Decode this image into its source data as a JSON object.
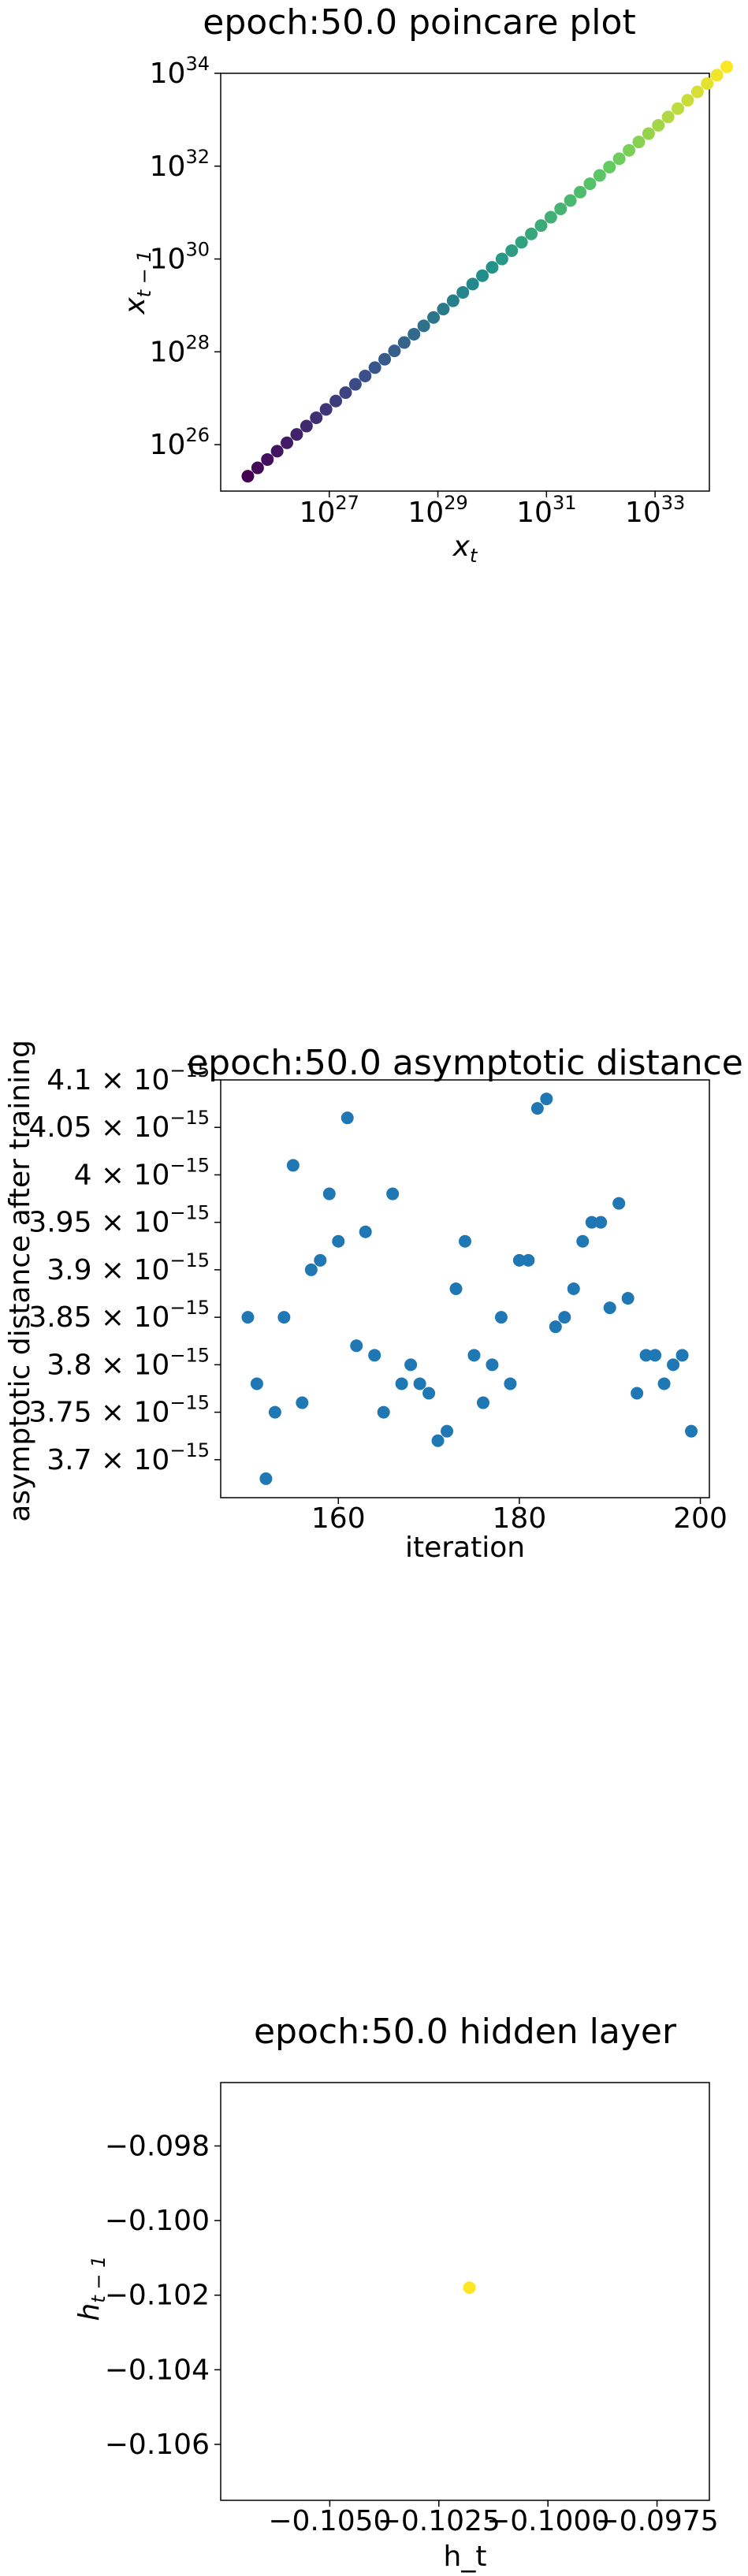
{
  "chart_data": [
    {
      "type": "scatter",
      "title": "epoch:50.0 poincare plot",
      "xlabel": "x",
      "xlabel_sub": "t",
      "ylabel": "x",
      "ylabel_sub": "t − 1",
      "xscale": "log",
      "yscale": "log",
      "xlim": [
        1e+25,
        1e+34
      ],
      "ylim": [
        1e+25,
        1e+34
      ],
      "colormap": "viridis",
      "xtick_mantissa": "10",
      "xtick_exponents": [
        "27",
        "29",
        "31",
        "33"
      ],
      "ytick_mantissa": "10",
      "ytick_exponents": [
        "26",
        "28",
        "30",
        "32",
        "34"
      ],
      "log_x_start": 25.5,
      "log_step": 0.18,
      "n_points": 50
    },
    {
      "type": "scatter",
      "title": "epoch:50.0 asymptotic distance",
      "xlabel": "iteration",
      "ylabel": "asymptotic distance after training",
      "xlim": [
        147,
        201
      ],
      "ylim": [
        3.66e-15,
        4.1e-15
      ],
      "color": "#1f77b4",
      "xticks": [
        "160",
        "180",
        "200"
      ],
      "ytick_mantissas": [
        "3.7",
        "3.75",
        "3.8",
        "3.85",
        "3.9",
        "3.95",
        "4",
        "4.05",
        "4.1"
      ],
      "ytick_times": "×",
      "ytick_power": "10",
      "ytick_exp": "−15",
      "x": [
        150,
        151,
        152,
        153,
        154,
        155,
        156,
        157,
        158,
        159,
        160,
        161,
        162,
        163,
        164,
        165,
        166,
        167,
        168,
        169,
        170,
        171,
        172,
        173,
        174,
        175,
        176,
        177,
        178,
        179,
        180,
        181,
        182,
        183,
        184,
        185,
        186,
        187,
        188,
        189,
        190,
        191,
        192,
        193,
        194,
        195,
        196,
        197,
        198,
        199
      ],
      "y": [
        3.85,
        3.78,
        3.68,
        3.75,
        3.85,
        4.01,
        3.76,
        3.9,
        3.91,
        3.98,
        3.93,
        4.06,
        3.82,
        3.94,
        3.81,
        3.75,
        3.98,
        3.78,
        3.8,
        3.78,
        3.77,
        3.72,
        3.73,
        3.88,
        3.93,
        3.81,
        3.76,
        3.8,
        3.85,
        3.78,
        3.91,
        3.91,
        4.07,
        4.08,
        3.84,
        3.85,
        3.88,
        3.93,
        3.95,
        3.95,
        3.86,
        3.97,
        3.87,
        3.77,
        3.81,
        3.81,
        3.78,
        3.8,
        3.81,
        3.73
      ],
      "y_unit_exp": -15
    },
    {
      "type": "scatter",
      "title": "epoch:50.0 hidden layer",
      "xlabel": "h_t",
      "ylabel": "h",
      "ylabel_sub": "t − 1",
      "xlim": [
        -0.1075,
        -0.0963
      ],
      "ylim": [
        -0.1075,
        -0.0963
      ],
      "color": "#fde725",
      "xticks": [
        "−0.1050",
        "−0.1025",
        "−0.1000",
        "−0.0975"
      ],
      "xtick_vals": [
        -0.105,
        -0.1025,
        -0.1,
        -0.0975
      ],
      "yticks": [
        "−0.098",
        "−0.100",
        "−0.102",
        "−0.104",
        "−0.106"
      ],
      "ytick_vals": [
        -0.098,
        -0.1,
        -0.102,
        -0.104,
        -0.106
      ],
      "x": [
        -0.1018
      ],
      "y": [
        -0.1018
      ]
    }
  ]
}
